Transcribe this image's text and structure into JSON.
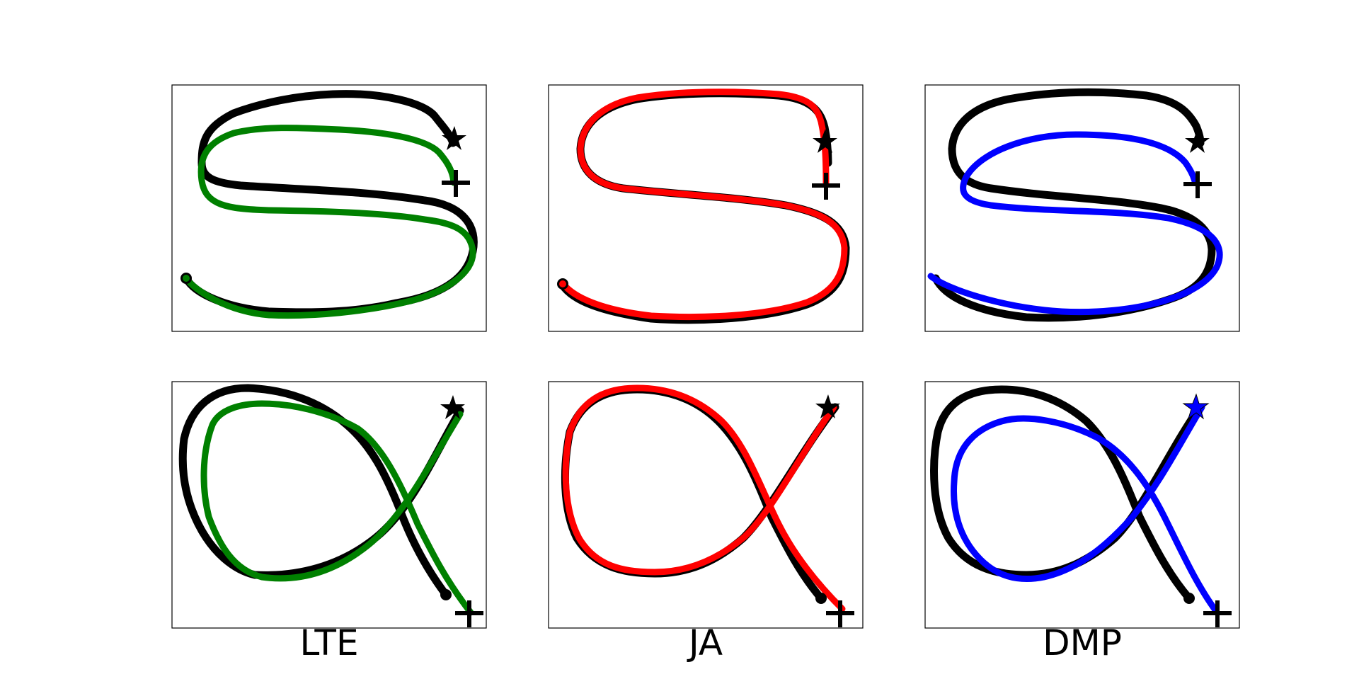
{
  "figure": {
    "columns": [
      {
        "label": "LTE",
        "color": "#008000"
      },
      {
        "label": "JA",
        "color": "#ff0000"
      },
      {
        "label": "DMP",
        "color": "#0000ff"
      }
    ],
    "demonstration_color": "#000000",
    "rows": [
      {
        "shape": "S"
      },
      {
        "shape": "alpha"
      }
    ],
    "markers": {
      "start": "circle-marker",
      "goal": "star-marker",
      "new_goal": "plus-marker"
    }
  }
}
